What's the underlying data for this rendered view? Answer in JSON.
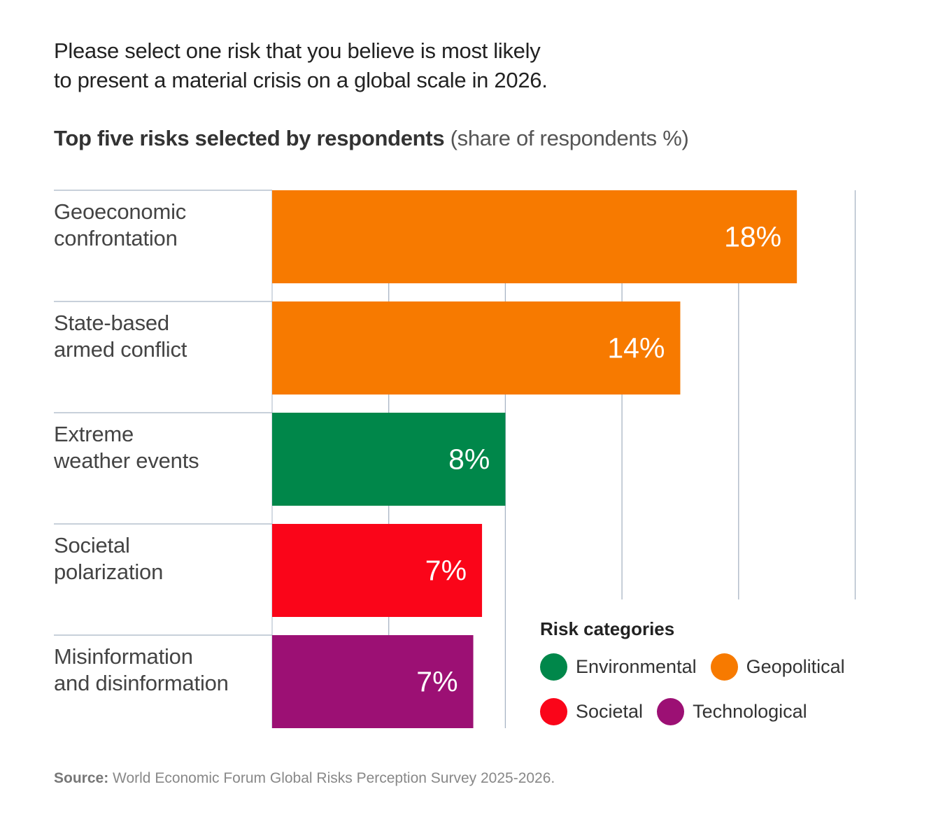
{
  "header": {
    "question_line1": "Please select one risk that you believe is most likely",
    "question_line2": "to present a material crisis on a global scale in 2026.",
    "subtitle_bold": "Top five risks selected by respondents",
    "subtitle_light": "(share of respondents %)"
  },
  "chart_data": {
    "type": "bar",
    "orientation": "horizontal",
    "title": "Top five risks selected by respondents",
    "subtitle": "(share of respondents %)",
    "xlabel": "",
    "ylabel": "",
    "xlim": [
      0,
      20
    ],
    "grid": true,
    "grid_step": 4,
    "categories": [
      [
        "Geoeconomic",
        "confrontation"
      ],
      [
        "State-based",
        "armed conflict"
      ],
      [
        "Extreme",
        "weather events"
      ],
      [
        "Societal",
        "polarization"
      ],
      [
        "Misinformation",
        "and disinformation"
      ]
    ],
    "values": [
      18,
      14,
      8,
      7.2,
      6.9
    ],
    "value_labels": [
      "18%",
      "14%",
      "8%",
      "7%",
      "7%"
    ],
    "bar_categories": [
      "Geopolitical",
      "Geopolitical",
      "Environmental",
      "Societal",
      "Technological"
    ],
    "legend_position": "bottom-right"
  },
  "legend": {
    "title": "Risk categories",
    "items": [
      {
        "label": "Environmental",
        "color": "#00874A"
      },
      {
        "label": "Geopolitical",
        "color": "#F77A00"
      },
      {
        "label": "Societal",
        "color": "#FA0519"
      },
      {
        "label": "Technological",
        "color": "#9C1074"
      }
    ]
  },
  "colors": {
    "Environmental": "#00874A",
    "Geopolitical": "#F77A00",
    "Societal": "#FA0519",
    "Technological": "#9C1074",
    "gridline": "#A8B4C4",
    "bar_text": "#FFFFFF"
  },
  "source": {
    "prefix": "Source:",
    "text": " World Economic Forum Global Risks Perception Survey 2025-2026."
  }
}
